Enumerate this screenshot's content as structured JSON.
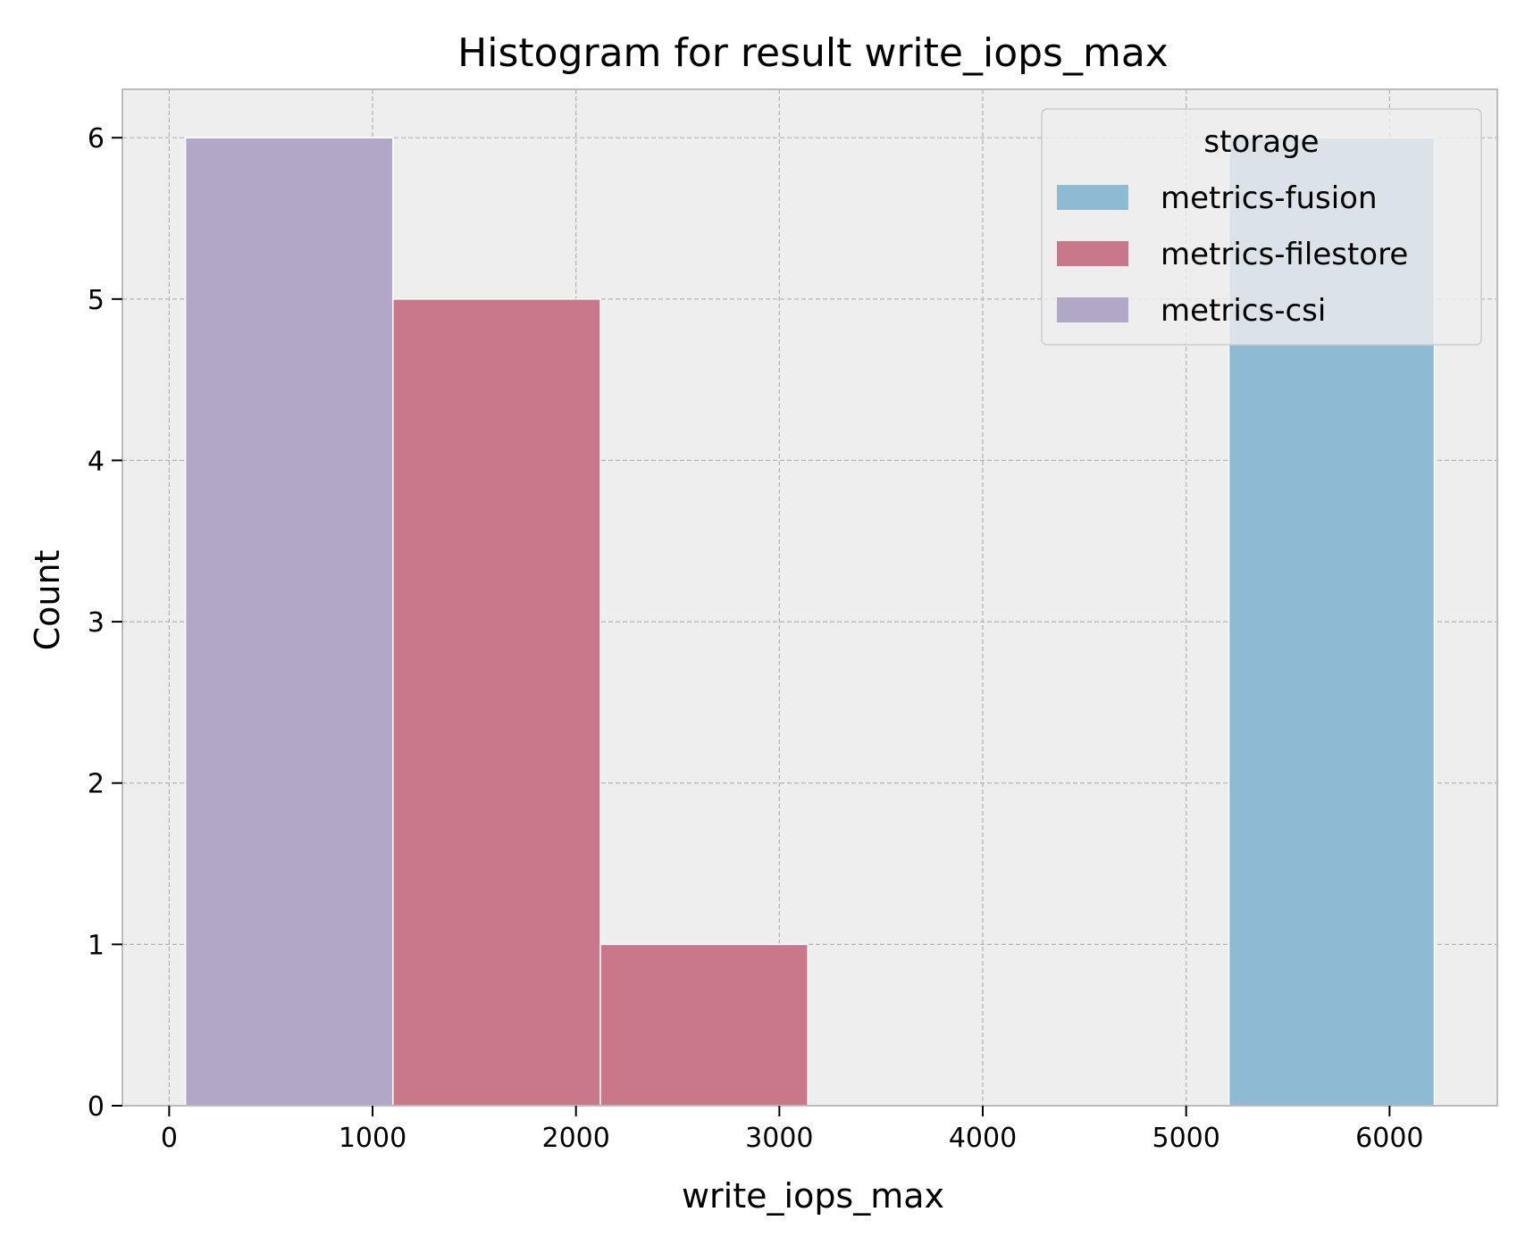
{
  "chart_data": {
    "type": "bar",
    "title": "Histogram for result write_iops_max",
    "xlabel": "write_iops_max",
    "ylabel": "Count",
    "xlim": [
      -230,
      6530
    ],
    "ylim": [
      0,
      6.3
    ],
    "x_ticks": [
      0,
      1000,
      2000,
      3000,
      4000,
      5000,
      6000
    ],
    "y_ticks": [
      0,
      1,
      2,
      3,
      4,
      5,
      6
    ],
    "grid": true,
    "legend": {
      "title": "storage",
      "placement": "top-right"
    },
    "series": [
      {
        "name": "metrics-fusion",
        "color": "#8fbad4",
        "bins": [
          {
            "x0": 5210,
            "x1": 6220,
            "count": 6
          }
        ]
      },
      {
        "name": "metrics-filestore",
        "color": "#c87888",
        "bins": [
          {
            "x0": 1100,
            "x1": 2120,
            "count": 5
          },
          {
            "x0": 2120,
            "x1": 3140,
            "count": 1
          }
        ]
      },
      {
        "name": "metrics-csi",
        "color": "#b1a8c8",
        "bins": [
          {
            "x0": 80,
            "x1": 1100,
            "count": 6
          }
        ]
      }
    ]
  }
}
